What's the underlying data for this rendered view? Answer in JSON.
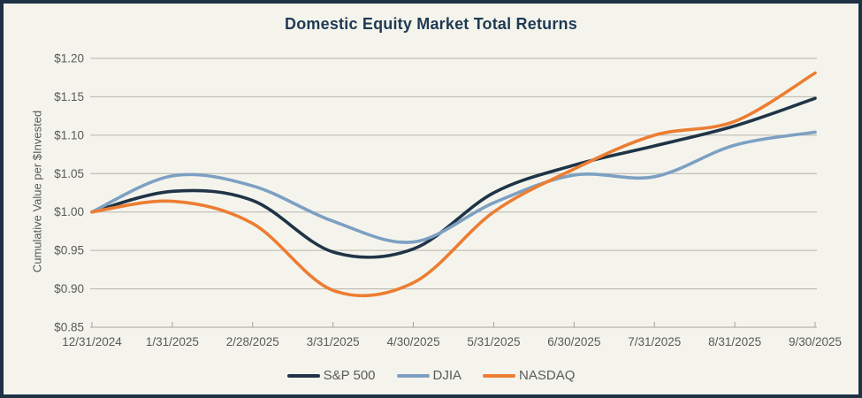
{
  "title": "Domestic Equity Market Total Returns",
  "colors": {
    "background": "#f4f4ed",
    "frame_border": "#1e3145",
    "title_text": "#1f3a52",
    "axis_text": "#595959",
    "gridline": "#b6b5ad",
    "axis_line": "#a3a29a",
    "sp500_line": "#1f3446",
    "djia_line": "#7da0c2",
    "nasdaq_line": "#ed7d31"
  },
  "chart_data": {
    "type": "line",
    "title": "Domestic Equity Market Total Returns",
    "xlabel": "",
    "ylabel": "Cumulative Value per $Invested",
    "categories": [
      "12/31/2024",
      "1/31/2025",
      "2/28/2025",
      "3/31/2025",
      "4/30/2025",
      "5/31/2025",
      "6/30/2025",
      "7/31/2025",
      "8/31/2025",
      "9/30/2025"
    ],
    "series": [
      {
        "name": "S&P 500",
        "color": "#1f3446",
        "values": [
          1.0,
          1.027,
          1.015,
          0.948,
          0.952,
          1.025,
          1.061,
          1.086,
          1.112,
          1.148
        ]
      },
      {
        "name": "DJIA",
        "color": "#7da0c2",
        "values": [
          1.0,
          1.047,
          1.034,
          0.988,
          0.961,
          1.012,
          1.048,
          1.046,
          1.087,
          1.104
        ]
      },
      {
        "name": "NASDAQ",
        "color": "#ed7d31",
        "values": [
          1.0,
          1.014,
          0.985,
          0.898,
          0.908,
          1.0,
          1.056,
          1.1,
          1.118,
          1.181
        ]
      }
    ],
    "ylim": [
      0.85,
      1.2
    ],
    "ytick_step": 0.05,
    "ytick_labels": [
      "$0.85",
      "$0.90",
      "$0.95",
      "$1.00",
      "$1.05",
      "$1.10",
      "$1.15",
      "$1.20"
    ],
    "grid": true,
    "smoothed": true,
    "legend_position": "bottom"
  }
}
